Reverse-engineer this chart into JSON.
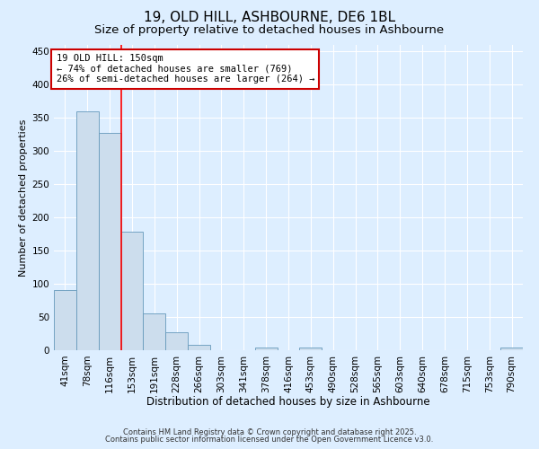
{
  "title": "19, OLD HILL, ASHBOURNE, DE6 1BL",
  "subtitle": "Size of property relative to detached houses in Ashbourne",
  "xlabel": "Distribution of detached houses by size in Ashbourne",
  "ylabel": "Number of detached properties",
  "bar_values": [
    90,
    360,
    328,
    178,
    55,
    27,
    8,
    0,
    0,
    4,
    0,
    4,
    0,
    0,
    0,
    0,
    0,
    0,
    0,
    0,
    4
  ],
  "bar_labels": [
    "41sqm",
    "78sqm",
    "116sqm",
    "153sqm",
    "191sqm",
    "228sqm",
    "266sqm",
    "303sqm",
    "341sqm",
    "378sqm",
    "416sqm",
    "453sqm",
    "490sqm",
    "528sqm",
    "565sqm",
    "603sqm",
    "640sqm",
    "678sqm",
    "715sqm",
    "753sqm",
    "790sqm"
  ],
  "bar_color": "#ccdded",
  "bar_edge_color": "#6699bb",
  "background_color": "#ddeeff",
  "plot_bg_color": "#ddeeff",
  "grid_color": "#ffffff",
  "red_line_x": 2.5,
  "annotation_text": "19 OLD HILL: 150sqm\n← 74% of detached houses are smaller (769)\n26% of semi-detached houses are larger (264) →",
  "annotation_box_facecolor": "#ffffff",
  "annotation_box_edgecolor": "#cc0000",
  "ylim": [
    0,
    460
  ],
  "yticks": [
    0,
    50,
    100,
    150,
    200,
    250,
    300,
    350,
    400,
    450
  ],
  "title_fontsize": 11,
  "subtitle_fontsize": 9.5,
  "xlabel_fontsize": 8.5,
  "ylabel_fontsize": 8,
  "tick_fontsize": 7.5,
  "annotation_fontsize": 7.5,
  "footer_line1": "Contains HM Land Registry data © Crown copyright and database right 2025.",
  "footer_line2": "Contains public sector information licensed under the Open Government Licence v3.0.",
  "footer_fontsize": 6
}
